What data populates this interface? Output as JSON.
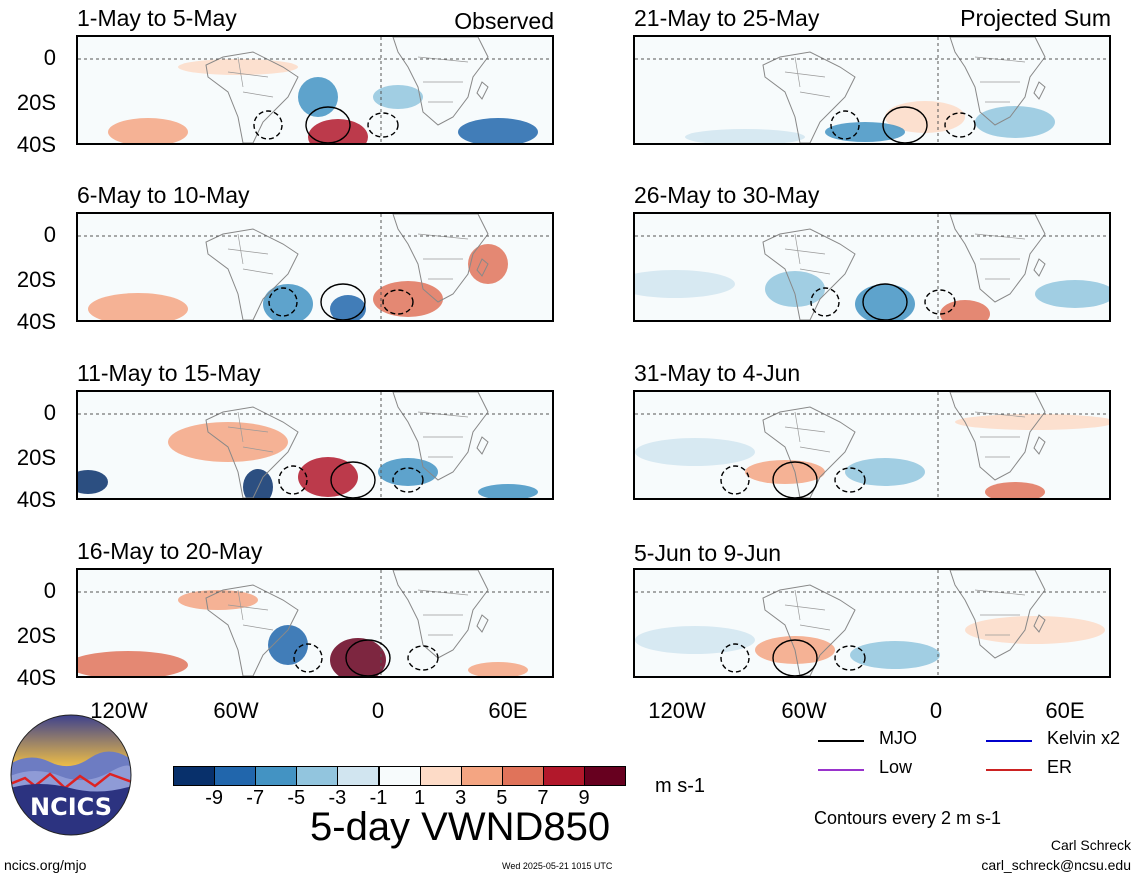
{
  "panels_left": [
    {
      "title": "1-May to 5-May",
      "tag": "Observed"
    },
    {
      "title": "6-May to 10-May",
      "tag": ""
    },
    {
      "title": "11-May to 15-May",
      "tag": ""
    },
    {
      "title": "16-May to 20-May",
      "tag": ""
    }
  ],
  "panels_right": [
    {
      "title": "21-May to 25-May",
      "tag": "Projected Sum"
    },
    {
      "title": "26-May to 30-May",
      "tag": ""
    },
    {
      "title": "31-May to 4-Jun",
      "tag": ""
    },
    {
      "title": "5-Jun to 9-Jun",
      "tag": ""
    }
  ],
  "y_ticks": [
    "0",
    "20S",
    "40S"
  ],
  "x_ticks": [
    "120W",
    "60W",
    "0",
    "60E"
  ],
  "colorbar": {
    "colors": [
      "#08306b",
      "#2166ac",
      "#4393c3",
      "#92c5de",
      "#d1e5f0",
      "#f7fbfc",
      "#fddbc7",
      "#f4a582",
      "#e0735a",
      "#b2182b",
      "#67001f"
    ],
    "labels": [
      "-9",
      "-7",
      "-5",
      "-3",
      "-1",
      "1",
      "3",
      "5",
      "7",
      "9"
    ],
    "units": "m s-1"
  },
  "main_title": "5-day VWND850",
  "legend": [
    {
      "name": "MJO",
      "color": "#000000"
    },
    {
      "name": "Kelvin x2",
      "color": "#0000cc"
    },
    {
      "name": "Low",
      "color": "#9933cc"
    },
    {
      "name": "ER",
      "color": "#cc2222"
    }
  ],
  "contour_note": "Contours every 2 m s-1",
  "logo_text": "NCICS",
  "footer_left": "ncics.org/mjo",
  "footer_center": "Wed 2025-05-21 1015 UTC",
  "author": "Carl Schreck",
  "email": "carl_schreck@ncsu.edu"
}
